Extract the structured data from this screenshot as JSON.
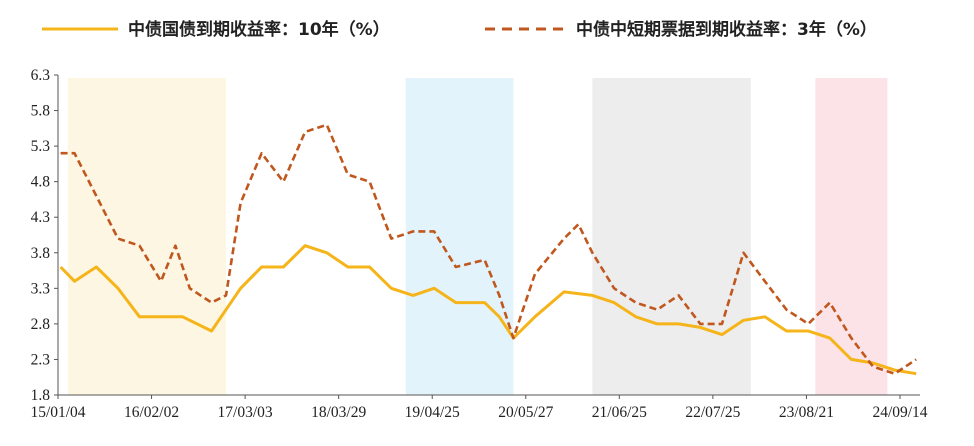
{
  "chart_data": {
    "type": "line",
    "title": "",
    "xlabel": "",
    "ylabel": "",
    "x_tick_labels": [
      "15/01/04",
      "16/02/02",
      "17/03/03",
      "18/03/29",
      "19/04/25",
      "20/05/27",
      "21/06/25",
      "22/07/25",
      "23/08/21",
      "24/09/14"
    ],
    "ylim": [
      1.8,
      6.3
    ],
    "y_ticks": [
      1.8,
      2.3,
      2.8,
      3.3,
      3.8,
      4.3,
      4.8,
      5.3,
      5.8,
      6.3
    ],
    "legend_position": "top",
    "grid": false,
    "shaded_periods": [
      {
        "start": "2015-02",
        "end": "2016-12",
        "color": "#FDF6E3"
      },
      {
        "start": "2019-01",
        "end": "2020-04",
        "color": "#E3F3FB"
      },
      {
        "start": "2021-03",
        "end": "2023-01",
        "color": "#EDEDED"
      },
      {
        "start": "2023-10",
        "end": "2024-08",
        "color": "#FCE3E7"
      }
    ],
    "series": [
      {
        "name": "中债国债到期收益率：10年（%）",
        "color": "#F5B41A",
        "style": "solid",
        "x": [
          "2015-01",
          "2015-03",
          "2015-06",
          "2015-09",
          "2015-12",
          "2016-03",
          "2016-06",
          "2016-10",
          "2016-12",
          "2017-02",
          "2017-05",
          "2017-08",
          "2017-11",
          "2018-02",
          "2018-05",
          "2018-08",
          "2018-11",
          "2019-02",
          "2019-05",
          "2019-08",
          "2019-12",
          "2020-02",
          "2020-04",
          "2020-07",
          "2020-11",
          "2021-03",
          "2021-06",
          "2021-09",
          "2021-12",
          "2022-03",
          "2022-06",
          "2022-09",
          "2022-12",
          "2023-03",
          "2023-06",
          "2023-09",
          "2023-12",
          "2024-03",
          "2024-06",
          "2024-09",
          "2024-12"
        ],
        "values": [
          3.6,
          3.4,
          3.6,
          3.3,
          2.9,
          2.9,
          2.9,
          2.7,
          3.0,
          3.3,
          3.6,
          3.6,
          3.9,
          3.8,
          3.6,
          3.6,
          3.3,
          3.2,
          3.3,
          3.1,
          3.1,
          2.9,
          2.6,
          2.9,
          3.25,
          3.2,
          3.1,
          2.9,
          2.8,
          2.8,
          2.75,
          2.65,
          2.85,
          2.9,
          2.7,
          2.7,
          2.6,
          2.3,
          2.25,
          2.15,
          2.1
        ]
      },
      {
        "name": "中债中短期票据到期收益率：3年（%）",
        "color": "#C0571E",
        "style": "dashed",
        "x": [
          "2015-01",
          "2015-03",
          "2015-06",
          "2015-09",
          "2015-12",
          "2016-03",
          "2016-05",
          "2016-07",
          "2016-10",
          "2016-12",
          "2017-02",
          "2017-05",
          "2017-08",
          "2017-11",
          "2018-02",
          "2018-05",
          "2018-08",
          "2018-11",
          "2019-02",
          "2019-05",
          "2019-08",
          "2019-12",
          "2020-02",
          "2020-04",
          "2020-07",
          "2020-11",
          "2021-01",
          "2021-03",
          "2021-06",
          "2021-09",
          "2021-12",
          "2022-03",
          "2022-06",
          "2022-09",
          "2022-12",
          "2023-03",
          "2023-06",
          "2023-09",
          "2023-12",
          "2024-03",
          "2024-06",
          "2024-09",
          "2024-12"
        ],
        "values": [
          5.2,
          5.2,
          4.6,
          4.0,
          3.9,
          3.4,
          3.9,
          3.3,
          3.1,
          3.2,
          4.5,
          5.2,
          4.8,
          5.5,
          5.6,
          4.9,
          4.8,
          4.0,
          4.1,
          4.1,
          3.6,
          3.7,
          3.2,
          2.6,
          3.5,
          4.0,
          4.2,
          3.8,
          3.3,
          3.1,
          3.0,
          3.2,
          2.8,
          2.8,
          3.8,
          3.4,
          3.0,
          2.8,
          3.1,
          2.6,
          2.2,
          2.1,
          2.3
        ]
      }
    ]
  }
}
